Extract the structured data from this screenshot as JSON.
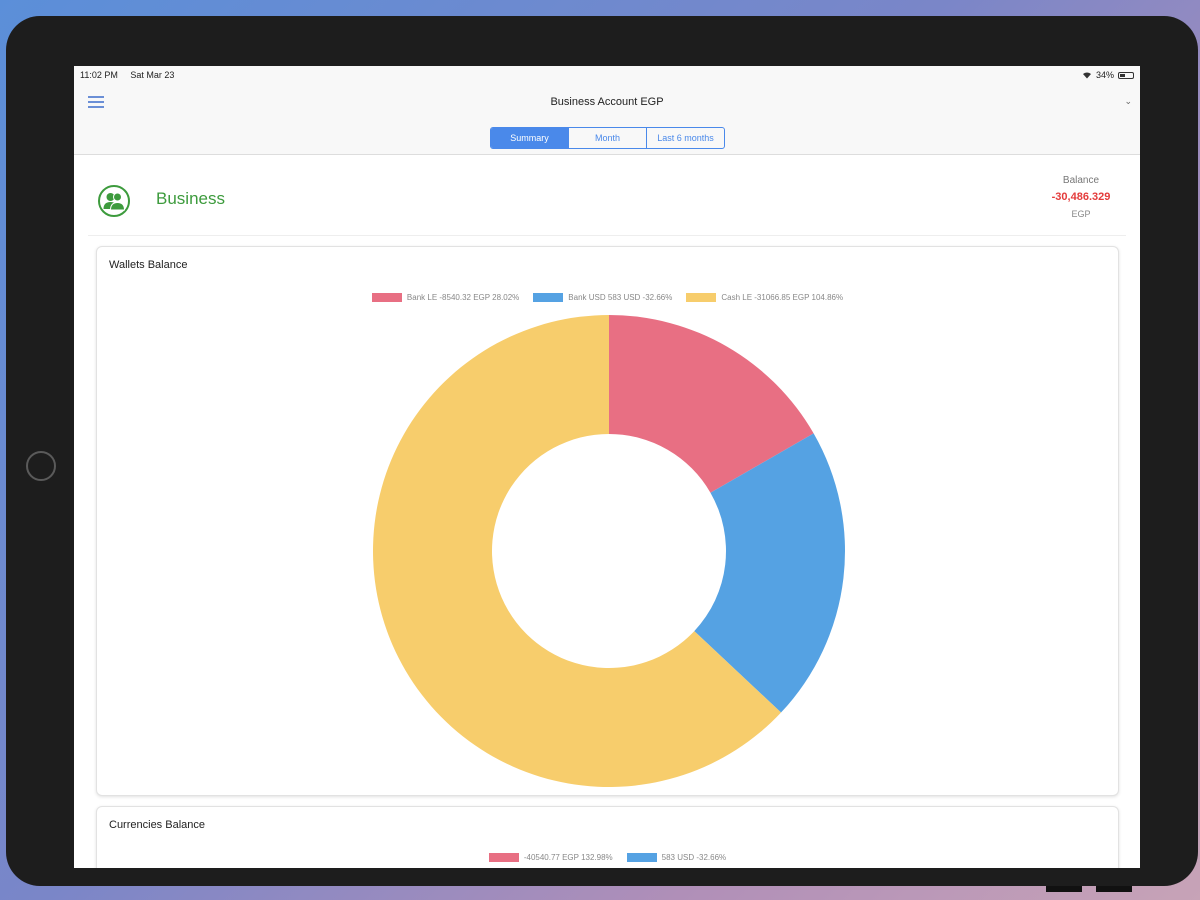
{
  "status_bar": {
    "time": "11:02 PM",
    "date": "Sat Mar 23",
    "battery": "34%"
  },
  "nav": {
    "title": "Business Account EGP",
    "chevron_icon": "chevron-down-icon",
    "menu_icon": "hamburger-menu-icon"
  },
  "segments": [
    {
      "label": "Summary",
      "active": true
    },
    {
      "label": "Month",
      "active": false
    },
    {
      "label": "Last 6 months",
      "active": false
    }
  ],
  "account": {
    "name": "Business",
    "icon": "users-icon",
    "balance_label": "Balance",
    "balance_value": "-30,486.329",
    "balance_currency": "EGP",
    "name_color": "#3d9b3d",
    "balance_color": "#e43b3b"
  },
  "wallets_card": {
    "title": "Wallets Balance",
    "legend": [
      {
        "label": "Bank LE -8540.32 EGP 28.02%",
        "color": "#e86f83"
      },
      {
        "label": "Bank USD 583 USD -32.66%",
        "color": "#55a2e3"
      },
      {
        "label": "Cash LE -31066.85 EGP 104.86%",
        "color": "#f7cd6c"
      }
    ]
  },
  "currencies_card": {
    "title": "Currencies Balance",
    "legend": [
      {
        "label": "-40540.77  EGP  132.98%",
        "color": "#e86f83"
      },
      {
        "label": "583  USD  -32.66%",
        "color": "#55a2e3"
      }
    ]
  },
  "chart_data": {
    "type": "pie",
    "variant": "donut",
    "categories": [
      "Bank LE",
      "Bank USD",
      "Cash LE"
    ],
    "values": [
      16.7,
      20.3,
      63.0
    ],
    "colors": [
      "#e86f83",
      "#55a2e3",
      "#f7cd6c"
    ]
  }
}
